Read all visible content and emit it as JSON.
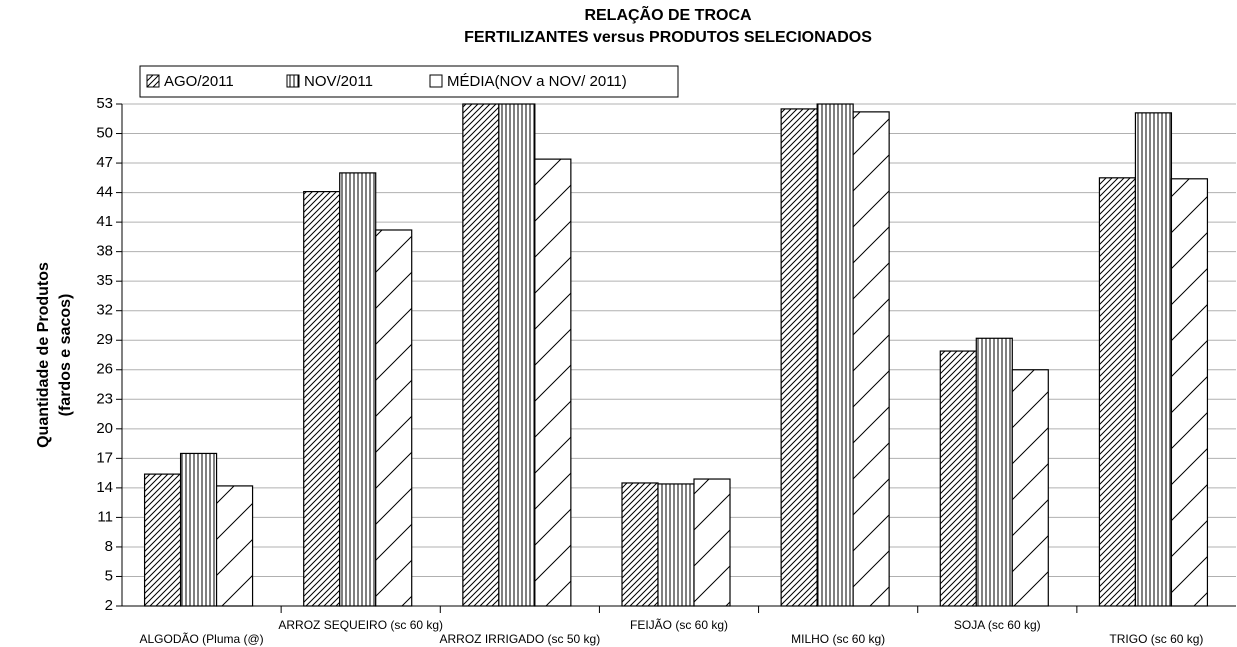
{
  "chart_data": {
    "type": "bar",
    "title": [
      "RELAÇÃO DE TROCA",
      "FERTILIZANTES versus PRODUTOS SELECIONADOS"
    ],
    "ylabel": [
      "Quantidade de Produtos",
      "(fardos e sacos)"
    ],
    "categories": [
      "ALGODÃO (Pluma (@)",
      "ARROZ SEQUEIRO (sc 60 kg)",
      "ARROZ IRRIGADO (sc 50 kg)",
      "FEIJÃO (sc 60 kg)",
      "MILHO (sc 60 kg)",
      "SOJA (sc 60 kg)",
      "TRIGO (sc 60 kg)"
    ],
    "series": [
      {
        "name": "AGO/2011",
        "color": "#000000",
        "pattern": "hatch-dense",
        "values": [
          15.4,
          44.1,
          53,
          14.5,
          52.5,
          27.9,
          45.5
        ]
      },
      {
        "name": "NOV/2011",
        "color": "#000000",
        "pattern": "vertical",
        "values": [
          17.5,
          46,
          53,
          14.4,
          53,
          29.2,
          52.1
        ]
      },
      {
        "name": "MÉDIA(NOV a  NOV/ 2011)",
        "color": "#000000",
        "pattern": "hatch-sparse",
        "values": [
          14.2,
          40.2,
          47.4,
          14.9,
          52.2,
          26,
          45.4
        ]
      }
    ],
    "ylim": [
      2,
      53
    ],
    "yticks": [
      2,
      5,
      8,
      11,
      14,
      17,
      20,
      23,
      26,
      29,
      32,
      35,
      38,
      41,
      44,
      47,
      50,
      53
    ],
    "grid": true
  }
}
